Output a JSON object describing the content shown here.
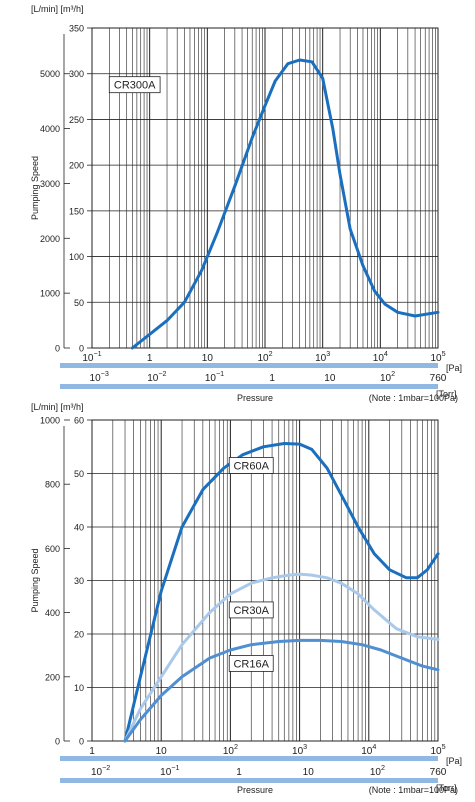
{
  "colors": {
    "accent": "#1a6fbf",
    "light": "#a9c9ea",
    "mid": "#4f8fd2",
    "bar": "#8fb8e3",
    "grid": "#222222"
  },
  "chart_data": [
    {
      "type": "line",
      "units_label": "[L/min] [m³/h]",
      "ylabel": "Pumping Speed",
      "xlabel": "Pressure",
      "note": "(Note : 1mbar=100Pa)",
      "x_scale": "log",
      "xlim": [
        0.1,
        100000
      ],
      "x_ticks": [
        {
          "v": 0.1,
          "base": "10",
          "exp": "−1"
        },
        {
          "v": 1,
          "base": "1",
          "exp": ""
        },
        {
          "v": 10,
          "base": "10",
          "exp": ""
        },
        {
          "v": 100,
          "base": "10",
          "exp": "2"
        },
        {
          "v": 1000,
          "base": "10",
          "exp": "3"
        },
        {
          "v": 10000,
          "base": "10",
          "exp": "4"
        },
        {
          "v": 100000,
          "base": "10",
          "exp": "5"
        }
      ],
      "x_unit": "[Pa]",
      "torr_ticks": [
        {
          "pa": 0.1333,
          "base": "10",
          "exp": "−3"
        },
        {
          "pa": 1.333,
          "base": "10",
          "exp": "−2"
        },
        {
          "pa": 13.33,
          "base": "10",
          "exp": "−1"
        },
        {
          "pa": 133.3,
          "base": "1",
          "exp": ""
        },
        {
          "pa": 1333,
          "base": "10",
          "exp": ""
        },
        {
          "pa": 13330,
          "base": "10",
          "exp": "2"
        },
        {
          "pa": 101308,
          "base": "760",
          "exp": ""
        }
      ],
      "torr_unit": "[Torr]",
      "ylim": [
        0,
        350
      ],
      "m3h_ticks": [
        0,
        50,
        100,
        150,
        200,
        250,
        300,
        350
      ],
      "lmin_ticks": [
        0,
        1000,
        2000,
        3000,
        4000,
        5000
      ],
      "grid": true,
      "series": [
        {
          "name": "CR300A",
          "color_key": "accent",
          "label_at": {
            "x": 0.55,
            "y": 288
          },
          "x": [
            0.5,
            1,
            2,
            4,
            8,
            15,
            30,
            60,
            100,
            150,
            250,
            400,
            650,
            1000,
            1500,
            2000,
            3000,
            5000,
            8000,
            12000,
            20000,
            40000,
            100000
          ],
          "y": [
            0,
            15,
            30,
            50,
            85,
            127,
            177,
            230,
            265,
            292,
            311,
            315,
            313,
            295,
            240,
            190,
            130,
            90,
            62,
            48,
            39,
            35,
            39
          ]
        }
      ]
    },
    {
      "type": "line",
      "units_label": "[L/min] [m³/h]",
      "ylabel": "Pumping Speed",
      "xlabel": "Pressure",
      "note": "(Note : 1mbar=100Pa)",
      "x_scale": "log",
      "xlim": [
        1,
        100000
      ],
      "x_ticks": [
        {
          "v": 1,
          "base": "1",
          "exp": ""
        },
        {
          "v": 10,
          "base": "10",
          "exp": ""
        },
        {
          "v": 100,
          "base": "10",
          "exp": "2"
        },
        {
          "v": 1000,
          "base": "10",
          "exp": "3"
        },
        {
          "v": 10000,
          "base": "10",
          "exp": "4"
        },
        {
          "v": 100000,
          "base": "10",
          "exp": "5"
        }
      ],
      "x_unit": "[Pa]",
      "torr_ticks": [
        {
          "pa": 1.333,
          "base": "10",
          "exp": "−2"
        },
        {
          "pa": 13.33,
          "base": "10",
          "exp": "−1"
        },
        {
          "pa": 133.3,
          "base": "1",
          "exp": ""
        },
        {
          "pa": 1333,
          "base": "10",
          "exp": ""
        },
        {
          "pa": 13330,
          "base": "10",
          "exp": "2"
        },
        {
          "pa": 101308,
          "base": "760",
          "exp": ""
        }
      ],
      "torr_unit": "[Torr]",
      "ylim": [
        0,
        60
      ],
      "m3h_ticks": [
        0,
        10,
        20,
        30,
        40,
        50,
        60
      ],
      "lmin_ticks": [
        0,
        200,
        400,
        600,
        800,
        1000
      ],
      "grid": true,
      "series": [
        {
          "name": "CR60A",
          "color_key": "accent",
          "label_at": {
            "x": 200,
            "y": 51.5
          },
          "x": [
            3,
            5,
            10,
            20,
            40,
            80,
            150,
            300,
            600,
            1000,
            1500,
            2500,
            4000,
            7000,
            12000,
            20000,
            35000,
            50000,
            70000,
            100000
          ],
          "y": [
            0,
            12,
            28,
            40,
            47,
            51,
            53.5,
            55,
            55.6,
            55.5,
            54.5,
            51,
            46,
            40,
            35,
            32,
            30.5,
            30.5,
            32,
            35
          ]
        },
        {
          "name": "CR30A",
          "color_key": "light",
          "label_at": {
            "x": 200,
            "y": 24.5
          },
          "x": [
            3,
            5,
            10,
            20,
            50,
            100,
            200,
            400,
            700,
            1000,
            1500,
            2500,
            4000,
            7000,
            12000,
            25000,
            50000,
            100000
          ],
          "y": [
            0,
            6,
            12,
            18,
            24,
            27.5,
            29.5,
            30.5,
            31,
            31.2,
            31,
            30.5,
            29.5,
            27.5,
            24.5,
            21,
            19.5,
            19
          ]
        },
        {
          "name": "CR16A",
          "color_key": "mid",
          "label_at": {
            "x": 200,
            "y": 14.5
          },
          "x": [
            3,
            5,
            10,
            20,
            50,
            100,
            200,
            500,
            1000,
            2000,
            4000,
            8000,
            15000,
            30000,
            60000,
            100000
          ],
          "y": [
            0,
            4,
            8.5,
            12,
            15.5,
            17,
            18,
            18.6,
            18.8,
            18.8,
            18.6,
            18,
            17,
            15.5,
            14,
            13.3
          ]
        }
      ]
    }
  ]
}
